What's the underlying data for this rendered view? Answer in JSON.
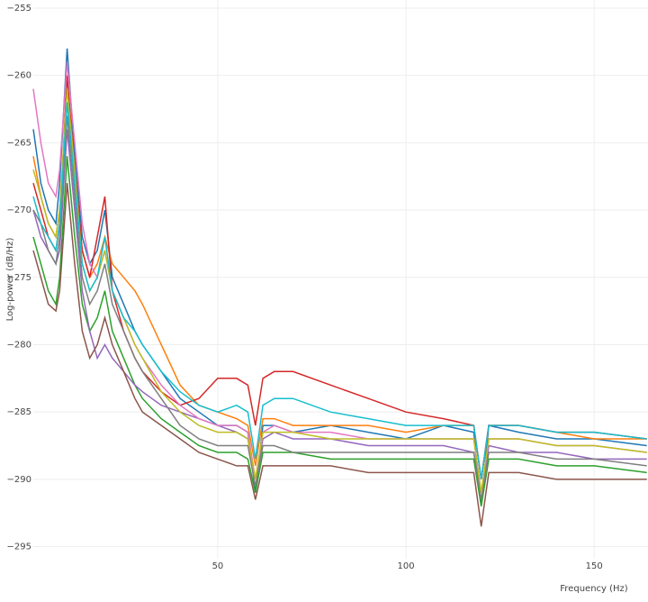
{
  "chart_data": {
    "type": "line",
    "x_label": "Frequency (Hz)",
    "y_label": "Log-power  (dB/Hz)",
    "xlim": [
      1,
      164.3
    ],
    "ylim": [
      -295.9,
      -254.4
    ],
    "xticks": [
      50,
      100,
      150
    ],
    "yticks": [
      {
        "value": -295,
        "label": "−295"
      },
      {
        "value": -290,
        "label": "−290"
      },
      {
        "value": -285,
        "label": "−285"
      },
      {
        "value": -280,
        "label": "−280"
      },
      {
        "value": -275,
        "label": "−275"
      },
      {
        "value": -270,
        "label": "−270"
      },
      {
        "value": -265,
        "label": "−265"
      },
      {
        "value": -260,
        "label": "−260"
      },
      {
        "value": -255,
        "label": "−255"
      }
    ],
    "grid": true,
    "x": [
      1,
      3,
      5,
      7,
      8,
      10,
      12,
      14,
      16,
      18,
      20,
      22,
      25,
      28,
      30,
      35,
      40,
      45,
      50,
      55,
      58,
      60,
      62,
      65,
      70,
      80,
      90,
      100,
      110,
      118,
      120,
      122,
      130,
      140,
      150,
      164
    ],
    "series": [
      {
        "color": "#1f77b4",
        "values": [
          -264,
          -268,
          -270,
          -271,
          -268,
          -258,
          -266,
          -272,
          -274,
          -273,
          -270,
          -275,
          -277,
          -279,
          -280,
          -282,
          -284,
          -285,
          -286,
          -286,
          -286.5,
          -291,
          -286,
          -286,
          -286.5,
          -286,
          -286.5,
          -287,
          -286,
          -286.5,
          -292,
          -286,
          -286.5,
          -287,
          -287,
          -287.5
        ]
      },
      {
        "color": "#ff7f0e",
        "values": [
          -266,
          -269,
          -271,
          -272,
          -270,
          -262,
          -268,
          -273,
          -275,
          -274,
          -272,
          -274,
          -275,
          -276,
          -277,
          -280,
          -283,
          -284.5,
          -285,
          -285.5,
          -286,
          -289,
          -285.5,
          -285.5,
          -286,
          -286,
          -286,
          -286.5,
          -286,
          -286,
          -290,
          -286,
          -286,
          -286.5,
          -287,
          -287
        ]
      },
      {
        "color": "#2ca02c",
        "values": [
          -272,
          -274,
          -276,
          -277,
          -275,
          -266,
          -272,
          -277,
          -279,
          -278,
          -276,
          -279,
          -281,
          -283,
          -284,
          -285.5,
          -286.5,
          -287.5,
          -288,
          -288,
          -288.5,
          -291,
          -288,
          -288,
          -288,
          -288.5,
          -288.5,
          -288.5,
          -288.5,
          -288.5,
          -292,
          -288.5,
          -288.5,
          -289,
          -289,
          -289.5
        ]
      },
      {
        "color": "#d62728",
        "values": [
          -268,
          -270,
          -272,
          -273,
          -271,
          -260,
          -267,
          -273,
          -275,
          -272,
          -269,
          -276,
          -279,
          -281,
          -282,
          -283.5,
          -284.5,
          -284,
          -282.5,
          -282.5,
          -283,
          -286,
          -282.5,
          -282,
          -282,
          -283,
          -284,
          -285,
          -285.5,
          -286,
          -290,
          -286,
          -286,
          -286.5,
          -286.5,
          -287
        ]
      },
      {
        "color": "#9467bd",
        "values": [
          -270,
          -272,
          -273,
          -274,
          -273,
          -264,
          -270,
          -276,
          -279,
          -281,
          -280,
          -281,
          -282,
          -283,
          -283.5,
          -284.5,
          -285,
          -285.5,
          -286,
          -286.5,
          -287,
          -290,
          -287,
          -286.5,
          -287,
          -287,
          -287.5,
          -287.5,
          -287.5,
          -288,
          -291,
          -287.5,
          -288,
          -288,
          -288.5,
          -288.5
        ]
      },
      {
        "color": "#8c564b",
        "values": [
          -273,
          -275,
          -277,
          -277.5,
          -276,
          -268,
          -274,
          -279,
          -281,
          -280,
          -278,
          -280,
          -282,
          -284,
          -285,
          -286,
          -287,
          -288,
          -288.5,
          -289,
          -289,
          -291.5,
          -289,
          -289,
          -289,
          -289,
          -289.5,
          -289.5,
          -289.5,
          -289.5,
          -293.5,
          -289.5,
          -289.5,
          -290,
          -290,
          -290
        ]
      },
      {
        "color": "#e377c2",
        "values": [
          -261,
          -265,
          -268,
          -269,
          -267,
          -259,
          -265,
          -271,
          -274,
          -275,
          -273,
          -276,
          -278,
          -280,
          -281,
          -283,
          -284.5,
          -285.5,
          -286,
          -286,
          -286.5,
          -290,
          -286.5,
          -286,
          -286.5,
          -286.5,
          -287,
          -287,
          -287,
          -287,
          -291,
          -287,
          -287,
          -287.5,
          -287.5,
          -288
        ]
      },
      {
        "color": "#7f7f7f",
        "values": [
          -270,
          -271,
          -273,
          -274,
          -272,
          -263,
          -269,
          -275,
          -277,
          -276,
          -274,
          -277,
          -279,
          -281,
          -282,
          -284,
          -286,
          -287,
          -287.5,
          -287.5,
          -287.5,
          -290.5,
          -287.5,
          -287.5,
          -288,
          -288,
          -288,
          -288,
          -288,
          -288,
          -291.5,
          -288,
          -288,
          -288.5,
          -288.5,
          -289
        ]
      },
      {
        "color": "#bcbd22",
        "values": [
          -267,
          -269,
          -271,
          -272,
          -270,
          -261,
          -267,
          -274,
          -276,
          -275,
          -273,
          -276,
          -278,
          -280,
          -281,
          -283.5,
          -285,
          -286,
          -286.5,
          -286.5,
          -287,
          -290,
          -286.5,
          -286.5,
          -286.5,
          -287,
          -287,
          -287,
          -287,
          -287,
          -291,
          -287,
          -287,
          -287.5,
          -287.5,
          -288
        ]
      },
      {
        "color": "#17becf",
        "values": [
          -269,
          -271,
          -272,
          -273,
          -271,
          -262,
          -268,
          -274,
          -276,
          -275,
          -272,
          -276,
          -278,
          -279,
          -280,
          -282,
          -283.5,
          -284.5,
          -285,
          -284.5,
          -285,
          -288.5,
          -284.5,
          -284,
          -284,
          -285,
          -285.5,
          -286,
          -286,
          -286,
          -290,
          -286,
          -286,
          -286.5,
          -286.5,
          -287
        ]
      }
    ]
  }
}
